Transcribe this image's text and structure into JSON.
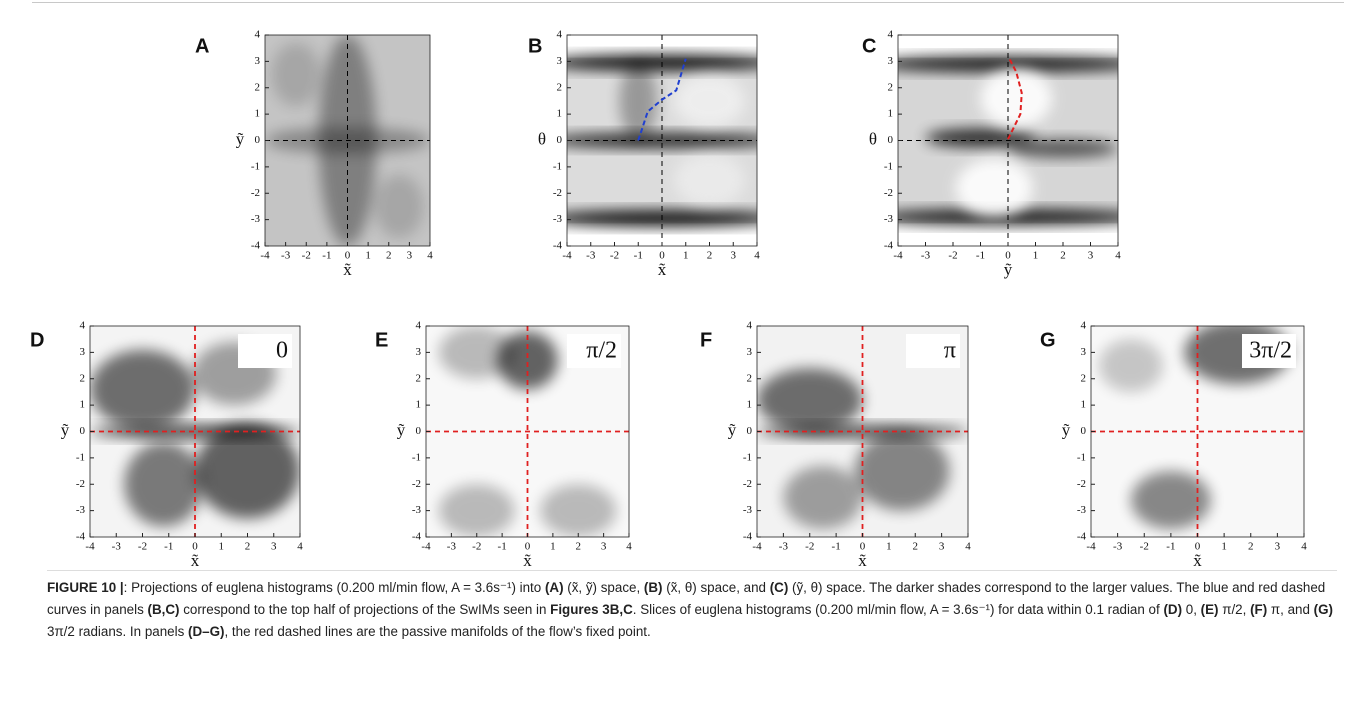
{
  "panels": [
    {
      "letter": "A",
      "xlabel": "x̃",
      "ylabel": "ỹ",
      "xlim": [
        -4,
        4
      ],
      "ylim": [
        -4,
        4
      ],
      "xticks": [
        -4,
        -3,
        -2,
        -1,
        0,
        1,
        2,
        3,
        4
      ],
      "yticks": [
        -4,
        -3,
        -2,
        -1,
        0,
        1,
        2,
        3,
        4
      ],
      "guide_color": "#000000"
    },
    {
      "letter": "B",
      "xlabel": "x̃",
      "ylabel": "θ",
      "xlim": [
        -4,
        4
      ],
      "ylim": [
        -4,
        4
      ],
      "xticks": [
        -4,
        -3,
        -2,
        -1,
        0,
        1,
        2,
        3,
        4
      ],
      "yticks": [
        -4,
        -3,
        -2,
        -1,
        0,
        1,
        2,
        3,
        4
      ],
      "guide_color": "#000000"
    },
    {
      "letter": "C",
      "xlabel": "ỹ",
      "ylabel": "θ",
      "xlim": [
        -4,
        4
      ],
      "ylim": [
        -4,
        4
      ],
      "xticks": [
        -4,
        -3,
        -2,
        -1,
        0,
        1,
        2,
        3,
        4
      ],
      "yticks": [
        -4,
        -3,
        -2,
        -1,
        0,
        1,
        2,
        3,
        4
      ],
      "guide_color": "#000000"
    },
    {
      "letter": "D",
      "xlabel": "x̃",
      "ylabel": "ỹ",
      "inset": "0",
      "xlim": [
        -4,
        4
      ],
      "ylim": [
        -4,
        4
      ],
      "xticks": [
        -4,
        -3,
        -2,
        -1,
        0,
        1,
        2,
        3,
        4
      ],
      "yticks": [
        -4,
        -3,
        -2,
        -1,
        0,
        1,
        2,
        3,
        4
      ],
      "guide_color": "#e02020"
    },
    {
      "letter": "E",
      "xlabel": "x̃",
      "ylabel": "ỹ",
      "inset": "π/2",
      "xlim": [
        -4,
        4
      ],
      "ylim": [
        -4,
        4
      ],
      "xticks": [
        -4,
        -3,
        -2,
        -1,
        0,
        1,
        2,
        3,
        4
      ],
      "yticks": [
        -4,
        -3,
        -2,
        -1,
        0,
        1,
        2,
        3,
        4
      ],
      "guide_color": "#e02020"
    },
    {
      "letter": "F",
      "xlabel": "x̃",
      "ylabel": "ỹ",
      "inset": "π",
      "xlim": [
        -4,
        4
      ],
      "ylim": [
        -4,
        4
      ],
      "xticks": [
        -4,
        -3,
        -2,
        -1,
        0,
        1,
        2,
        3,
        4
      ],
      "yticks": [
        -4,
        -3,
        -2,
        -1,
        0,
        1,
        2,
        3,
        4
      ],
      "guide_color": "#e02020"
    },
    {
      "letter": "G",
      "xlabel": "x̃",
      "ylabel": "ỹ",
      "inset": "3π/2",
      "xlim": [
        -4,
        4
      ],
      "ylim": [
        -4,
        4
      ],
      "xticks": [
        -4,
        -3,
        -2,
        -1,
        0,
        1,
        2,
        3,
        4
      ],
      "yticks": [
        -4,
        -3,
        -2,
        -1,
        0,
        1,
        2,
        3,
        4
      ],
      "guide_color": "#e02020"
    }
  ],
  "caption": {
    "label": "FIGURE 10 |",
    "segments": [
      {
        "text": ": Projections of euglena histograms (0.200 ml/min flow, A = 3.6s⁻¹) into ",
        "bold": false
      },
      {
        "text": "(A)",
        "bold": true
      },
      {
        "text": " (x̃, ỹ) space, ",
        "bold": false
      },
      {
        "text": "(B)",
        "bold": true
      },
      {
        "text": " (x̃, θ) space, and ",
        "bold": false
      },
      {
        "text": "(C)",
        "bold": true
      },
      {
        "text": " (ỹ, θ) space. The darker shades correspond to the larger values. The blue and red dashed curves in panels ",
        "bold": false
      },
      {
        "text": "(B,C)",
        "bold": true
      },
      {
        "text": " correspond to the top half of projections of the SwIMs seen in ",
        "bold": false
      },
      {
        "text": "Figures 3B,C",
        "bold": true
      },
      {
        "text": ". Slices of euglena histograms (0.200 ml/min flow, A = 3.6s⁻¹) for data within 0.1 radian of ",
        "bold": false
      },
      {
        "text": "(D)",
        "bold": true
      },
      {
        "text": " 0, ",
        "bold": false
      },
      {
        "text": "(E)",
        "bold": true
      },
      {
        "text": " π/2, ",
        "bold": false
      },
      {
        "text": "(F)",
        "bold": true
      },
      {
        "text": " π, and ",
        "bold": false
      },
      {
        "text": "(G)",
        "bold": true
      },
      {
        "text": " 3π/2 radians. In panels ",
        "bold": false
      },
      {
        "text": "(D–G)",
        "bold": true
      },
      {
        "text": ", the red dashed lines are the passive manifolds of the flow’s fixed point.",
        "bold": false
      }
    ]
  }
}
